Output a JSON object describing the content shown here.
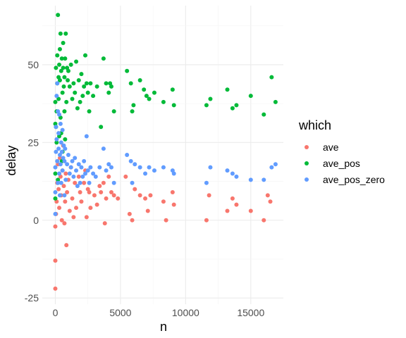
{
  "chart_data": {
    "type": "scatter",
    "xlabel": "n",
    "ylabel": "delay",
    "xlim": [
      -1000,
      17500
    ],
    "ylim": [
      -27,
      69
    ],
    "x_ticks": [
      0,
      5000,
      10000,
      15000
    ],
    "x_tick_labels": [
      "0",
      "5000",
      "10000",
      "15000"
    ],
    "y_ticks": [
      -25,
      0,
      25,
      50
    ],
    "y_tick_labels": [
      "-25",
      "0",
      "25",
      "50"
    ],
    "grid": true,
    "legend": {
      "title": "which",
      "position": "right"
    },
    "series": [
      {
        "name": "ave",
        "color": "#F8766D",
        "points": [
          [
            0,
            -22
          ],
          [
            0,
            -13
          ],
          [
            0,
            -2
          ],
          [
            50,
            2
          ],
          [
            100,
            6
          ],
          [
            150,
            12
          ],
          [
            200,
            18
          ],
          [
            250,
            10
          ],
          [
            300,
            4
          ],
          [
            350,
            20
          ],
          [
            400,
            14
          ],
          [
            450,
            8
          ],
          [
            500,
            0
          ],
          [
            550,
            16
          ],
          [
            600,
            24
          ],
          [
            650,
            11
          ],
          [
            700,
            -1
          ],
          [
            750,
            6
          ],
          [
            800,
            15
          ],
          [
            850,
            -8
          ],
          [
            900,
            9
          ],
          [
            1000,
            13
          ],
          [
            1100,
            3
          ],
          [
            1200,
            17
          ],
          [
            1300,
            7
          ],
          [
            1400,
            1
          ],
          [
            1500,
            12
          ],
          [
            1600,
            4
          ],
          [
            1800,
            14
          ],
          [
            1900,
            9
          ],
          [
            2000,
            6
          ],
          [
            2200,
            12
          ],
          [
            2300,
            16
          ],
          [
            2400,
            1
          ],
          [
            2500,
            10
          ],
          [
            2600,
            9
          ],
          [
            2700,
            4
          ],
          [
            3000,
            8
          ],
          [
            3200,
            5
          ],
          [
            3400,
            11
          ],
          [
            3500,
            9
          ],
          [
            3700,
            12
          ],
          [
            3800,
            -1
          ],
          [
            3900,
            7
          ],
          [
            4100,
            14
          ],
          [
            4300,
            9
          ],
          [
            4500,
            8
          ],
          [
            4800,
            7
          ],
          [
            5400,
            14
          ],
          [
            5700,
            2
          ],
          [
            5900,
            0
          ],
          [
            6100,
            10
          ],
          [
            6500,
            8
          ],
          [
            6900,
            7
          ],
          [
            7100,
            3
          ],
          [
            7300,
            8
          ],
          [
            8300,
            6
          ],
          [
            8500,
            0
          ],
          [
            9000,
            9
          ],
          [
            9100,
            5
          ],
          [
            11600,
            0
          ],
          [
            11800,
            8
          ],
          [
            13200,
            3
          ],
          [
            13600,
            7
          ],
          [
            13900,
            5
          ],
          [
            15000,
            3
          ],
          [
            16000,
            0
          ],
          [
            16300,
            8
          ],
          [
            16500,
            6
          ]
        ]
      },
      {
        "name": "ave_pos",
        "color": "#00BA38",
        "points": [
          [
            0,
            7
          ],
          [
            0,
            15
          ],
          [
            0,
            31
          ],
          [
            0,
            38
          ],
          [
            50,
            30
          ],
          [
            50,
            49
          ],
          [
            100,
            25
          ],
          [
            100,
            35
          ],
          [
            150,
            44
          ],
          [
            150,
            53
          ],
          [
            200,
            66
          ],
          [
            200,
            13
          ],
          [
            250,
            46
          ],
          [
            250,
            39
          ],
          [
            300,
            50
          ],
          [
            300,
            27
          ],
          [
            350,
            45
          ],
          [
            350,
            55
          ],
          [
            400,
            33
          ],
          [
            400,
            60
          ],
          [
            450,
            48
          ],
          [
            450,
            28
          ],
          [
            500,
            52
          ],
          [
            500,
            19
          ],
          [
            550,
            22
          ],
          [
            550,
            41
          ],
          [
            600,
            49
          ],
          [
            600,
            57
          ],
          [
            650,
            43
          ],
          [
            700,
            46
          ],
          [
            700,
            35
          ],
          [
            750,
            52
          ],
          [
            750,
            26
          ],
          [
            800,
            60
          ],
          [
            850,
            38
          ],
          [
            900,
            49
          ],
          [
            950,
            45
          ],
          [
            1000,
            48
          ],
          [
            1100,
            43
          ],
          [
            1200,
            50
          ],
          [
            1300,
            39
          ],
          [
            1400,
            44
          ],
          [
            1500,
            41
          ],
          [
            1600,
            51
          ],
          [
            1700,
            36
          ],
          [
            1800,
            45
          ],
          [
            1900,
            38
          ],
          [
            2000,
            47
          ],
          [
            2100,
            40
          ],
          [
            2200,
            43
          ],
          [
            2300,
            53
          ],
          [
            2400,
            44
          ],
          [
            2500,
            41
          ],
          [
            2600,
            35
          ],
          [
            2700,
            44
          ],
          [
            2900,
            40
          ],
          [
            3200,
            43
          ],
          [
            3500,
            30
          ],
          [
            3700,
            52
          ],
          [
            3900,
            44
          ],
          [
            4100,
            41
          ],
          [
            4200,
            44
          ],
          [
            4300,
            43
          ],
          [
            4500,
            35
          ],
          [
            5500,
            48
          ],
          [
            5800,
            44
          ],
          [
            5900,
            35
          ],
          [
            6000,
            37
          ],
          [
            6500,
            45
          ],
          [
            6800,
            42
          ],
          [
            7000,
            40
          ],
          [
            7200,
            39
          ],
          [
            7600,
            41
          ],
          [
            8300,
            38
          ],
          [
            9000,
            42
          ],
          [
            9100,
            37
          ],
          [
            11600,
            37
          ],
          [
            11900,
            39
          ],
          [
            13200,
            42
          ],
          [
            13600,
            36
          ],
          [
            13900,
            37
          ],
          [
            15000,
            40
          ],
          [
            16000,
            34
          ],
          [
            16600,
            46
          ],
          [
            16900,
            38
          ]
        ]
      },
      {
        "name": "ave_pos_zero",
        "color": "#619CFF",
        "points": [
          [
            0,
            2
          ],
          [
            0,
            9
          ],
          [
            0,
            17
          ],
          [
            50,
            22
          ],
          [
            50,
            30
          ],
          [
            100,
            26
          ],
          [
            100,
            40
          ],
          [
            150,
            19
          ],
          [
            150,
            44
          ],
          [
            200,
            35
          ],
          [
            200,
            12
          ],
          [
            250,
            23
          ],
          [
            250,
            28
          ],
          [
            300,
            15
          ],
          [
            300,
            34
          ],
          [
            350,
            21
          ],
          [
            350,
            8
          ],
          [
            400,
            18
          ],
          [
            400,
            31
          ],
          [
            450,
            12
          ],
          [
            450,
            25
          ],
          [
            500,
            22
          ],
          [
            550,
            16
          ],
          [
            550,
            29
          ],
          [
            600,
            20
          ],
          [
            650,
            24
          ],
          [
            700,
            19
          ],
          [
            700,
            8
          ],
          [
            750,
            23
          ],
          [
            800,
            13
          ],
          [
            900,
            18
          ],
          [
            1000,
            21
          ],
          [
            1100,
            15
          ],
          [
            1200,
            17
          ],
          [
            1300,
            19
          ],
          [
            1400,
            14
          ],
          [
            1500,
            20
          ],
          [
            1600,
            16
          ],
          [
            1700,
            11
          ],
          [
            1800,
            18
          ],
          [
            1900,
            12
          ],
          [
            2000,
            17
          ],
          [
            2100,
            14
          ],
          [
            2200,
            19
          ],
          [
            2300,
            15
          ],
          [
            2400,
            27
          ],
          [
            2500,
            16
          ],
          [
            2600,
            12
          ],
          [
            2700,
            17
          ],
          [
            2900,
            15
          ],
          [
            3100,
            14
          ],
          [
            3400,
            17
          ],
          [
            3700,
            23
          ],
          [
            3900,
            16
          ],
          [
            4100,
            18
          ],
          [
            4300,
            17
          ],
          [
            4500,
            12
          ],
          [
            5500,
            21
          ],
          [
            5800,
            19
          ],
          [
            5900,
            12
          ],
          [
            6100,
            18
          ],
          [
            6500,
            17
          ],
          [
            6900,
            15
          ],
          [
            7200,
            17
          ],
          [
            7600,
            16
          ],
          [
            8300,
            17
          ],
          [
            9000,
            16
          ],
          [
            9100,
            15
          ],
          [
            11600,
            12
          ],
          [
            11900,
            17
          ],
          [
            13200,
            16
          ],
          [
            13600,
            15
          ],
          [
            13900,
            14
          ],
          [
            15000,
            13
          ],
          [
            16000,
            13
          ],
          [
            16600,
            17
          ],
          [
            16900,
            18
          ]
        ]
      }
    ]
  }
}
